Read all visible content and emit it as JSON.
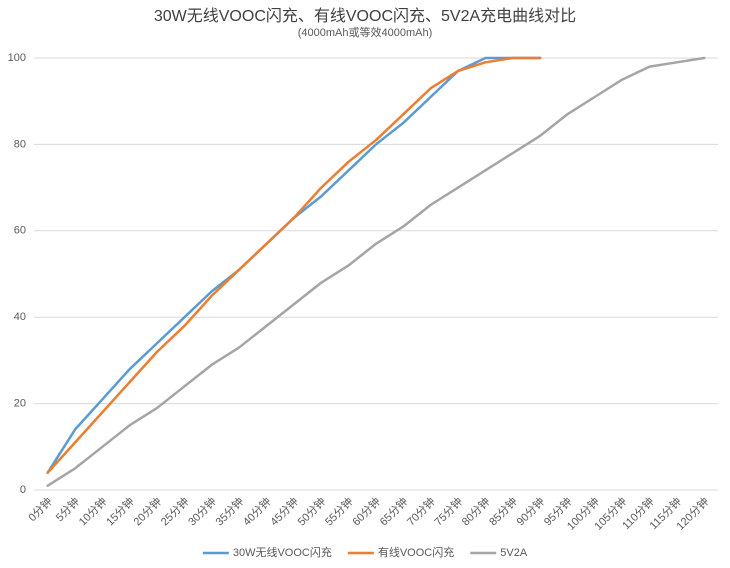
{
  "chart_data": {
    "type": "line",
    "title": "30W无线VOOC闪充、有线VOOC闪充、5V2A充电曲线对比",
    "subtitle": "(4000mAh或等效4000mAh)",
    "categories": [
      "0分钟",
      "5分钟",
      "10分钟",
      "15分钟",
      "20分钟",
      "25分钟",
      "30分钟",
      "35分钟",
      "40分钟",
      "45分钟",
      "50分钟",
      "55分钟",
      "60分钟",
      "65分钟",
      "70分钟",
      "75分钟",
      "80分钟",
      "85分钟",
      "90分钟",
      "95分钟",
      "100分钟",
      "105分钟",
      "110分钟",
      "115分钟",
      "120分钟"
    ],
    "series": [
      {
        "name": "30W无线VOOC闪充",
        "color": "#5b9bd5",
        "values": [
          4,
          14,
          21,
          28,
          34,
          40,
          46,
          51,
          57,
          63,
          68,
          74,
          80,
          85,
          91,
          97,
          100,
          100,
          100,
          null,
          null,
          null,
          null,
          null,
          null
        ]
      },
      {
        "name": "有线VOOC闪充",
        "color": "#ed7d31",
        "values": [
          4,
          11,
          18,
          25,
          32,
          38,
          45,
          51,
          57,
          63,
          70,
          76,
          81,
          87,
          93,
          97,
          99,
          100,
          100,
          null,
          null,
          null,
          null,
          null,
          null
        ]
      },
      {
        "name": "5V2A",
        "color": "#a5a5a5",
        "values": [
          1,
          5,
          10,
          15,
          19,
          24,
          29,
          33,
          38,
          43,
          48,
          52,
          57,
          61,
          66,
          70,
          74,
          78,
          82,
          87,
          91,
          95,
          98,
          99,
          100
        ]
      }
    ],
    "ylim": [
      0,
      100
    ],
    "yticks": [
      0,
      20,
      40,
      60,
      80,
      100
    ],
    "grid": true,
    "legend": "bottom"
  }
}
